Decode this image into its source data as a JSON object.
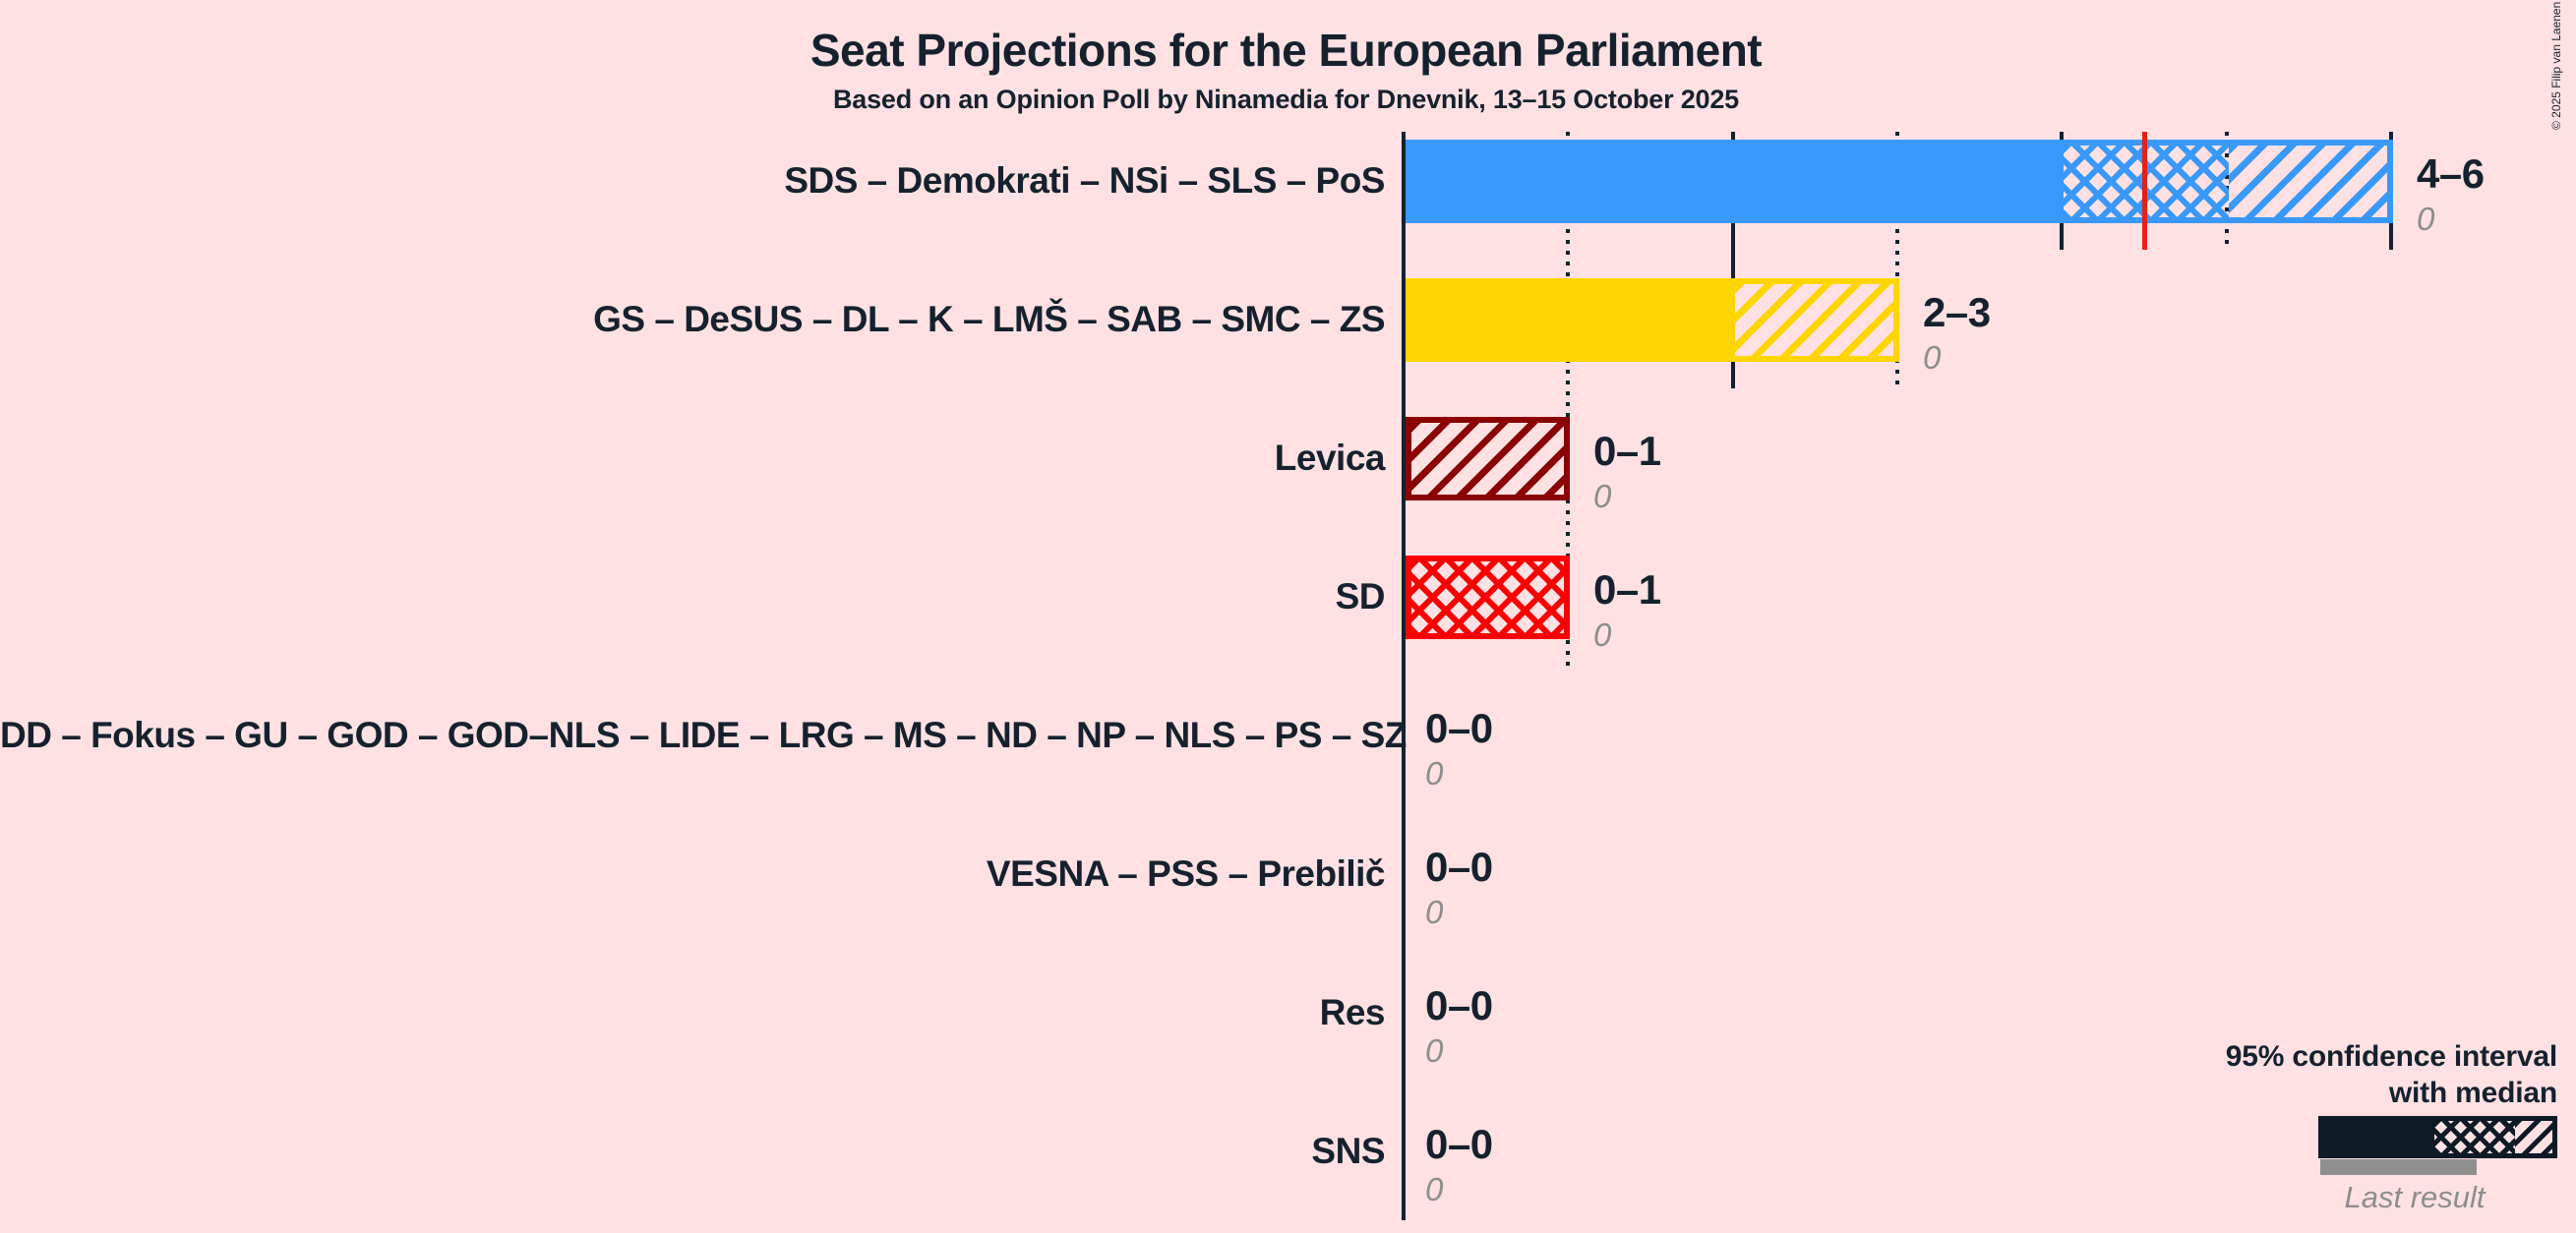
{
  "title": "Seat Projections for the European Parliament",
  "subtitle": "Based on an Opinion Poll by Ninamedia for Dnevnik, 13–15 October 2025",
  "copyright": "© 2025 Filip van Laenen",
  "colors": {
    "background": "#FFE1E3",
    "text": "#16212E",
    "axis": "#16212E",
    "majority_line": "#E32119",
    "last_result_gray": "#8D8D8D",
    "legend_bar": "#0E1A26"
  },
  "legend": {
    "ci_line1": "95% confidence interval",
    "ci_line2": "with median",
    "last_result": "Last result"
  },
  "chart_data": {
    "type": "bar",
    "orientation": "horizontal",
    "x_axis": {
      "min": 0,
      "max": 6,
      "tick_step": 1,
      "majority_line": 4.5,
      "numeric_labels_shown": false
    },
    "note": "Solid segment = lower bound of 95% CI; crosshatch = lower bound to median; diagonal hatch = median to upper bound; red line = majority threshold; gray = last result.",
    "bars": [
      {
        "label": "SDS – Demokrati – NSi – SLS – PoS",
        "color": "#3999FB",
        "ci_low": 4,
        "median": 5,
        "ci_high": 6,
        "value_label": "4–6",
        "last_result_value": 0,
        "last_result_label": "0"
      },
      {
        "label": "GS – DeSUS – DL – K – LMŠ – SAB – SMC – ZS",
        "color": "#FFD500",
        "ci_low": 2,
        "median": 2,
        "ci_high": 3,
        "value_label": "2–3",
        "last_result_value": 0,
        "last_result_label": "0"
      },
      {
        "label": "Levica",
        "color": "#8B0000",
        "ci_low": 0,
        "median": 0,
        "ci_high": 1,
        "value_label": "0–1",
        "last_result_value": 0,
        "last_result_label": "0"
      },
      {
        "label": "SD",
        "color": "#FB0000",
        "ci_low": 0,
        "median": 1,
        "ci_high": 1,
        "value_label": "0–1",
        "last_result_value": 0,
        "last_result_label": "0"
      },
      {
        "label": "DD – Fokus – GU – GOD – GOD–NLS – LIDE – LRG – MS – ND – NP – NLS – PS – SZ",
        "color": "#16212E",
        "ci_low": 0,
        "median": 0,
        "ci_high": 0,
        "value_label": "0–0",
        "last_result_value": 0,
        "last_result_label": "0"
      },
      {
        "label": "VESNA – PSS – Prebilič",
        "color": "#16212E",
        "ci_low": 0,
        "median": 0,
        "ci_high": 0,
        "value_label": "0–0",
        "last_result_value": 0,
        "last_result_label": "0"
      },
      {
        "label": "Res",
        "color": "#16212E",
        "ci_low": 0,
        "median": 0,
        "ci_high": 0,
        "value_label": "0–0",
        "last_result_value": 0,
        "last_result_label": "0"
      },
      {
        "label": "SNS",
        "color": "#16212E",
        "ci_low": 0,
        "median": 0,
        "ci_high": 0,
        "value_label": "0–0",
        "last_result_value": 0,
        "last_result_label": "0"
      }
    ]
  }
}
